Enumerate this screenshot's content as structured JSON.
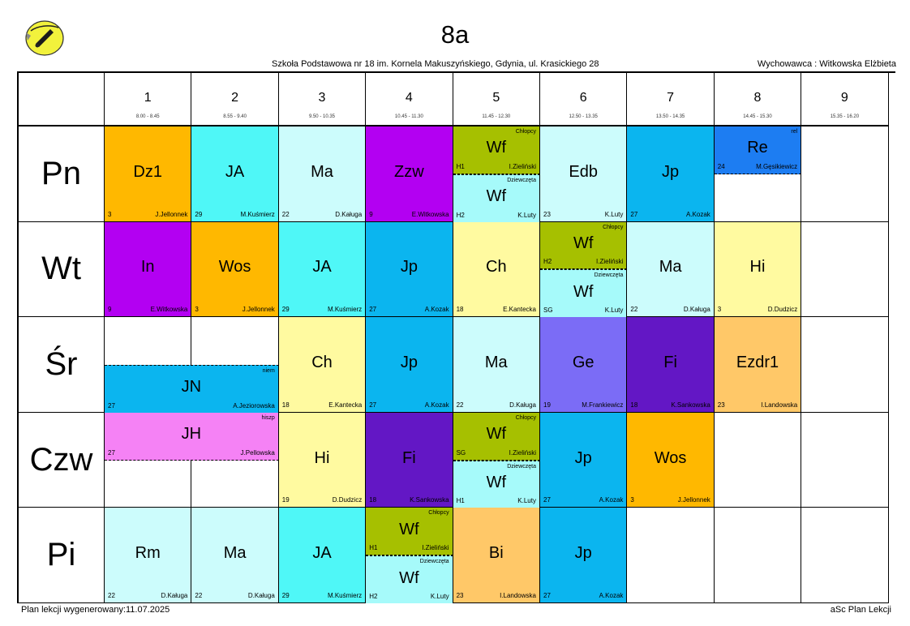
{
  "header": {
    "class_name": "8a",
    "school": "Szkoła Podstawowa nr 18 im. Kornela Makuszyńskiego, Gdynia, ul. Krasickiego 28",
    "homeroom": "Wychowawca : Witkowska Elżbieta"
  },
  "periods": [
    {
      "num": "1",
      "time": "8.00 - 8.45"
    },
    {
      "num": "2",
      "time": "8.55 - 9.40"
    },
    {
      "num": "3",
      "time": "9.50 - 10.35"
    },
    {
      "num": "4",
      "time": "10.45 - 11.30"
    },
    {
      "num": "5",
      "time": "11.45 - 12.30"
    },
    {
      "num": "6",
      "time": "12.50 - 13.35"
    },
    {
      "num": "7",
      "time": "13.50 - 14.35"
    },
    {
      "num": "8",
      "time": "14.45 - 15.30"
    },
    {
      "num": "9",
      "time": "15.35 - 16.20"
    }
  ],
  "days": [
    "Pn",
    "Wt",
    "Śr",
    "Czw",
    "Pi"
  ],
  "lessons": [
    {
      "day": 0,
      "period": 0,
      "half": "full",
      "subject": "Dz1",
      "room": "3",
      "teacher": "J.Jellonnek",
      "group": "",
      "color": "#ffb800"
    },
    {
      "day": 0,
      "period": 1,
      "half": "full",
      "subject": "JA",
      "room": "29",
      "teacher": "M.Kuśmierz",
      "group": "",
      "color": "#4ff7f7"
    },
    {
      "day": 0,
      "period": 2,
      "half": "full",
      "subject": "Ma",
      "room": "22",
      "teacher": "D.Kaługa",
      "group": "",
      "color": "#ccfcfc"
    },
    {
      "day": 0,
      "period": 3,
      "half": "full",
      "subject": "Zzw",
      "room": "9",
      "teacher": "E.Witkowska",
      "group": "",
      "color": "#b300f2"
    },
    {
      "day": 0,
      "period": 4,
      "half": "top",
      "subject": "Wf",
      "room": "H1",
      "teacher": "I.Zieliński",
      "group": "Chłopcy",
      "color": "#a6c000"
    },
    {
      "day": 0,
      "period": 4,
      "half": "bottom",
      "subject": "Wf",
      "room": "H2",
      "teacher": "K.Luty",
      "group": "Dziewczęta",
      "color": "#a6fafa"
    },
    {
      "day": 0,
      "period": 5,
      "half": "full",
      "subject": "Edb",
      "room": "23",
      "teacher": "K.Luty",
      "group": "",
      "color": "#ccfcfc"
    },
    {
      "day": 0,
      "period": 6,
      "half": "full",
      "subject": "Jp",
      "room": "27",
      "teacher": "A.Kozak",
      "group": "",
      "color": "#0bb5ef"
    },
    {
      "day": 0,
      "period": 7,
      "half": "top",
      "subject": "Re",
      "room": "24",
      "teacher": "M.Gęsikiewicz",
      "group": "rel",
      "color": "#1d7df2"
    },
    {
      "day": 1,
      "period": 0,
      "half": "full",
      "subject": "In",
      "room": "9",
      "teacher": "E.Witkowska",
      "group": "",
      "color": "#b300f2"
    },
    {
      "day": 1,
      "period": 1,
      "half": "full",
      "subject": "Wos",
      "room": "3",
      "teacher": "J.Jellonnek",
      "group": "",
      "color": "#ffb800"
    },
    {
      "day": 1,
      "period": 2,
      "half": "full",
      "subject": "JA",
      "room": "29",
      "teacher": "M.Kuśmierz",
      "group": "",
      "color": "#4ff7f7"
    },
    {
      "day": 1,
      "period": 3,
      "half": "full",
      "subject": "Jp",
      "room": "27",
      "teacher": "A.Kozak",
      "group": "",
      "color": "#0bb5ef"
    },
    {
      "day": 1,
      "period": 4,
      "half": "full",
      "subject": "Ch",
      "room": "18",
      "teacher": "E.Kantecka",
      "group": "",
      "color": "#fffaa0"
    },
    {
      "day": 1,
      "period": 5,
      "half": "top",
      "subject": "Wf",
      "room": "H2",
      "teacher": "I.Zieliński",
      "group": "Chłopcy",
      "color": "#a6c000"
    },
    {
      "day": 1,
      "period": 5,
      "half": "bottom",
      "subject": "Wf",
      "room": "SG",
      "teacher": "K.Luty",
      "group": "Dziewczęta",
      "color": "#a6fafa"
    },
    {
      "day": 1,
      "period": 6,
      "half": "full",
      "subject": "Ma",
      "room": "22",
      "teacher": "D.Kaługa",
      "group": "",
      "color": "#ccfcfc"
    },
    {
      "day": 1,
      "period": 7,
      "half": "full",
      "subject": "Hi",
      "room": "3",
      "teacher": "D.Dudzicz",
      "group": "",
      "color": "#fffaa0"
    },
    {
      "day": 2,
      "period": 0,
      "half": "bottom",
      "span": 2,
      "subject": "JN",
      "room": "27",
      "teacher": "A.Jeziorowska",
      "group": "niem",
      "color": "#0bb5ef"
    },
    {
      "day": 2,
      "period": 2,
      "half": "full",
      "subject": "Ch",
      "room": "18",
      "teacher": "E.Kantecka",
      "group": "",
      "color": "#fffaa0"
    },
    {
      "day": 2,
      "period": 3,
      "half": "full",
      "subject": "Jp",
      "room": "27",
      "teacher": "A.Kozak",
      "group": "",
      "color": "#0bb5ef"
    },
    {
      "day": 2,
      "period": 4,
      "half": "full",
      "subject": "Ma",
      "room": "22",
      "teacher": "D.Kaługa",
      "group": "",
      "color": "#ccfcfc"
    },
    {
      "day": 2,
      "period": 5,
      "half": "full",
      "subject": "Ge",
      "room": "19",
      "teacher": "M.Frankiewicz",
      "group": "",
      "color": "#7b6cf6"
    },
    {
      "day": 2,
      "period": 6,
      "half": "full",
      "subject": "Fi",
      "room": "18",
      "teacher": "K.Sankowska",
      "group": "",
      "color": "#6317c5"
    },
    {
      "day": 2,
      "period": 7,
      "half": "full",
      "subject": "Ezdr1",
      "room": "23",
      "teacher": "I.Landowska",
      "group": "",
      "color": "#ffc868"
    },
    {
      "day": 3,
      "period": 0,
      "half": "top",
      "span": 2,
      "subject": "JH",
      "room": "27",
      "teacher": "J.Pellowska",
      "group": "hiszp",
      "color": "#f582f5"
    },
    {
      "day": 3,
      "period": 2,
      "half": "full",
      "subject": "Hi",
      "room": "19",
      "teacher": "D.Dudzicz",
      "group": "",
      "color": "#fffaa0"
    },
    {
      "day": 3,
      "period": 3,
      "half": "full",
      "subject": "Fi",
      "room": "18",
      "teacher": "K.Sankowska",
      "group": "",
      "color": "#6317c5"
    },
    {
      "day": 3,
      "period": 4,
      "half": "top",
      "subject": "Wf",
      "room": "SG",
      "teacher": "I.Zieliński",
      "group": "Chłopcy",
      "color": "#a6c000"
    },
    {
      "day": 3,
      "period": 4,
      "half": "bottom",
      "subject": "Wf",
      "room": "H1",
      "teacher": "K.Luty",
      "group": "Dziewczęta",
      "color": "#a6fafa"
    },
    {
      "day": 3,
      "period": 5,
      "half": "full",
      "subject": "Jp",
      "room": "27",
      "teacher": "A.Kozak",
      "group": "",
      "color": "#0bb5ef"
    },
    {
      "day": 3,
      "period": 6,
      "half": "full",
      "subject": "Wos",
      "room": "3",
      "teacher": "J.Jellonnek",
      "group": "",
      "color": "#ffb800"
    },
    {
      "day": 4,
      "period": 0,
      "half": "full",
      "subject": "Rm",
      "room": "22",
      "teacher": "D.Kaługa",
      "group": "",
      "color": "#ccfcfc"
    },
    {
      "day": 4,
      "period": 1,
      "half": "full",
      "subject": "Ma",
      "room": "22",
      "teacher": "D.Kaługa",
      "group": "",
      "color": "#ccfcfc"
    },
    {
      "day": 4,
      "period": 2,
      "half": "full",
      "subject": "JA",
      "room": "29",
      "teacher": "M.Kuśmierz",
      "group": "",
      "color": "#4ff7f7"
    },
    {
      "day": 4,
      "period": 3,
      "half": "top",
      "subject": "Wf",
      "room": "H1",
      "teacher": "I.Zieliński",
      "group": "Chłopcy",
      "color": "#a6c000"
    },
    {
      "day": 4,
      "period": 3,
      "half": "bottom",
      "subject": "Wf",
      "room": "H2",
      "teacher": "K.Luty",
      "group": "Dziewczęta",
      "color": "#a6fafa"
    },
    {
      "day": 4,
      "period": 4,
      "half": "full",
      "subject": "Bi",
      "room": "23",
      "teacher": "I.Landowska",
      "group": "",
      "color": "#ffc868"
    },
    {
      "day": 4,
      "period": 5,
      "half": "full",
      "subject": "Jp",
      "room": "27",
      "teacher": "A.Kozak",
      "group": "",
      "color": "#0bb5ef"
    }
  ],
  "footer": {
    "generated": "Plan lekcji wygenerowany:11.07.2025",
    "app": "aSc Plan Lekcji"
  },
  "logo": {
    "icon": "school-crest-icon",
    "color": "#f2f23c"
  }
}
